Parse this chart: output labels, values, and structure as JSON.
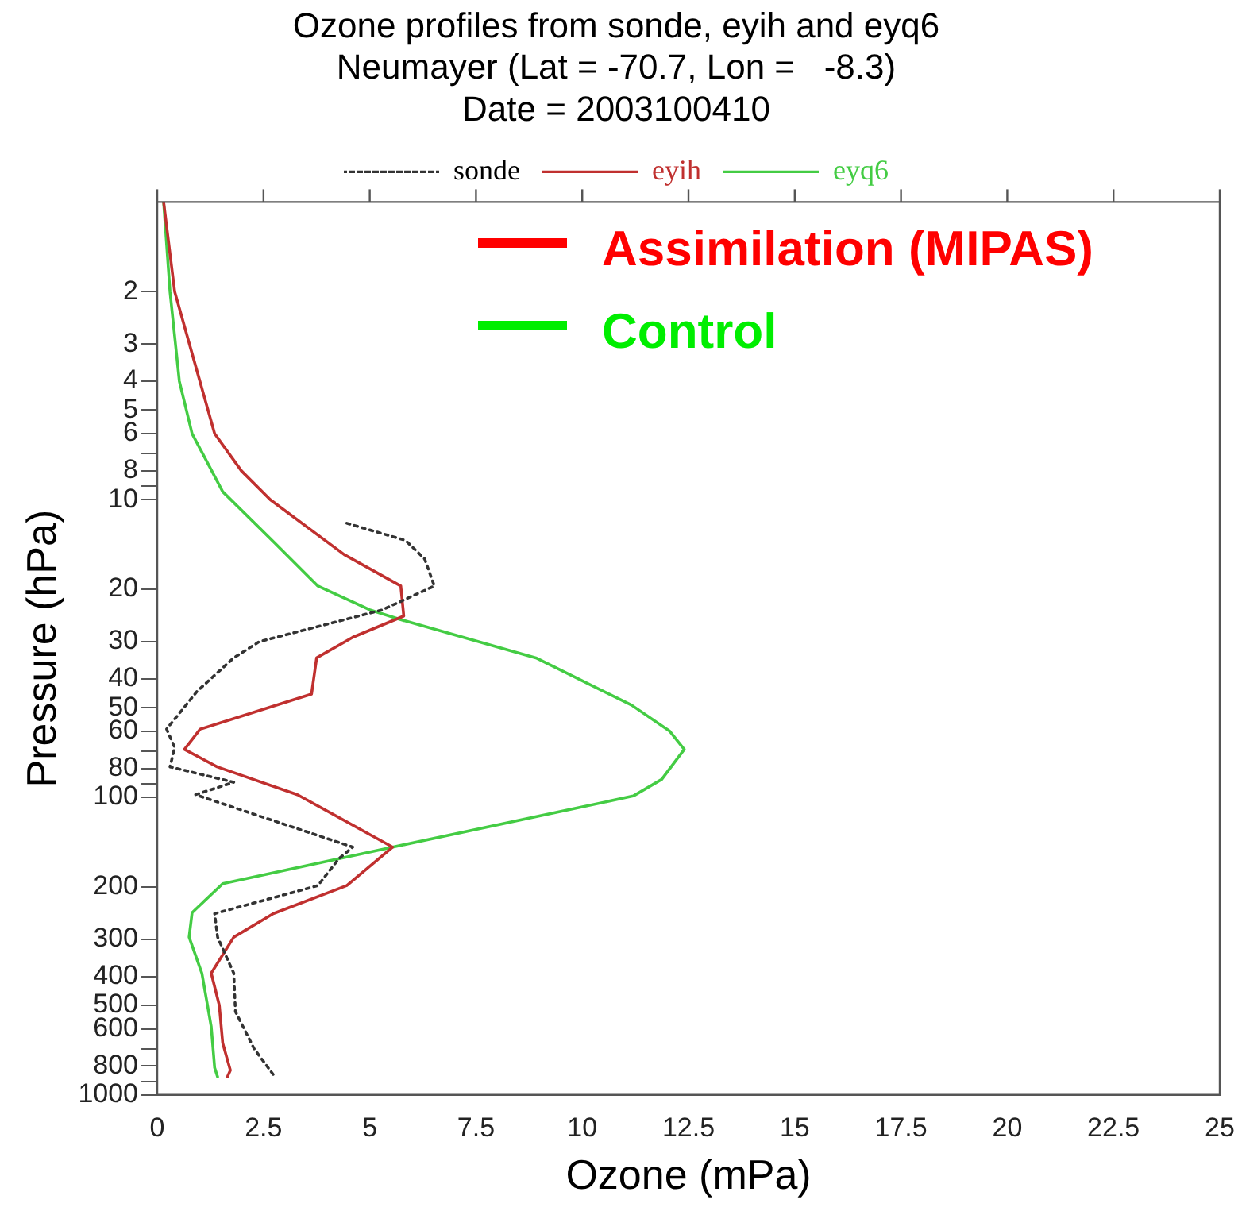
{
  "chart_data": {
    "type": "line",
    "title": "Ozone profiles from sonde, eyih and eyq6",
    "subtitle": "Neumayer (Lat = -70.7, Lon =   -8.3)\nDate = 2003100410",
    "xlabel": "Ozone (mPa)",
    "ylabel": "Pressure (hPa)",
    "series": [
      {
        "name": "sonde",
        "color": "#333333",
        "line_style": "dotted",
        "x": [
          4.46,
          5.84,
          6.29,
          6.52,
          5.28,
          2.4,
          1.8,
          0.94,
          0.22,
          0.41,
          0.3,
          1.8,
          0.9,
          4.6,
          4.27,
          3.78,
          1.35,
          1.42,
          1.8,
          1.84,
          2.28,
          2.77
        ],
        "values": [
          12,
          13.7,
          15.8,
          19.5,
          23.5,
          30,
          34,
          44,
          59,
          68,
          79,
          89,
          98,
          147,
          161,
          198,
          246,
          295,
          390,
          525,
          700,
          870
        ]
      },
      {
        "name": "eyih",
        "color": "#c0302f",
        "line_style": "solid",
        "x": [
          0.15,
          0.41,
          1.35,
          1.98,
          2.66,
          4.4,
          5.73,
          5.8,
          4.6,
          3.75,
          3.63,
          1.01,
          0.64,
          1.41,
          3.3,
          5.54,
          4.46,
          2.73,
          1.8,
          1.27,
          1.46,
          1.54,
          1.72,
          1.65
        ],
        "values": [
          1,
          2,
          6,
          8,
          10,
          15.3,
          19.5,
          24.6,
          29,
          34,
          45,
          59,
          69,
          79,
          98,
          147,
          198,
          246,
          295,
          390,
          500,
          670,
          826,
          870
        ]
      },
      {
        "name": "eyq6",
        "color": "#44cc44",
        "line_style": "solid",
        "x": [
          0.15,
          0.3,
          0.52,
          0.82,
          1.54,
          2.77,
          3.78,
          5.02,
          5.73,
          8.91,
          11.16,
          12.06,
          12.4,
          11.87,
          11.2,
          5.54,
          1.54,
          0.82,
          0.75,
          1.05,
          1.27,
          1.35,
          1.42
        ],
        "values": [
          1,
          2,
          4,
          6,
          9.4,
          14,
          19.5,
          23.5,
          25.3,
          34,
          49,
          60,
          69,
          87,
          99,
          147,
          195,
          244,
          295,
          390,
          590,
          810,
          870
        ]
      }
    ],
    "xlim": [
      0,
      25
    ],
    "xticks": [
      0,
      2.5,
      5,
      7.5,
      10,
      12.5,
      15,
      17.5,
      20,
      22.5,
      25
    ],
    "ylim": [
      1000,
      1
    ],
    "log": "y",
    "yticks": [
      2,
      3,
      4,
      5,
      6,
      {
        "value": 7,
        "label": null
      },
      8,
      {
        "value": 9,
        "label": null
      },
      10,
      20,
      30,
      40,
      50,
      60,
      {
        "value": 70,
        "label": null
      },
      80,
      {
        "value": 90,
        "label": null
      },
      100,
      200,
      300,
      400,
      500,
      600,
      {
        "value": 700,
        "label": null
      },
      800,
      {
        "value": 900,
        "label": null
      },
      1000
    ],
    "annotations": [
      "Assimilation (MIPAS)",
      "Control"
    ],
    "legend": "top",
    "grid": false,
    "marker": "none"
  }
}
